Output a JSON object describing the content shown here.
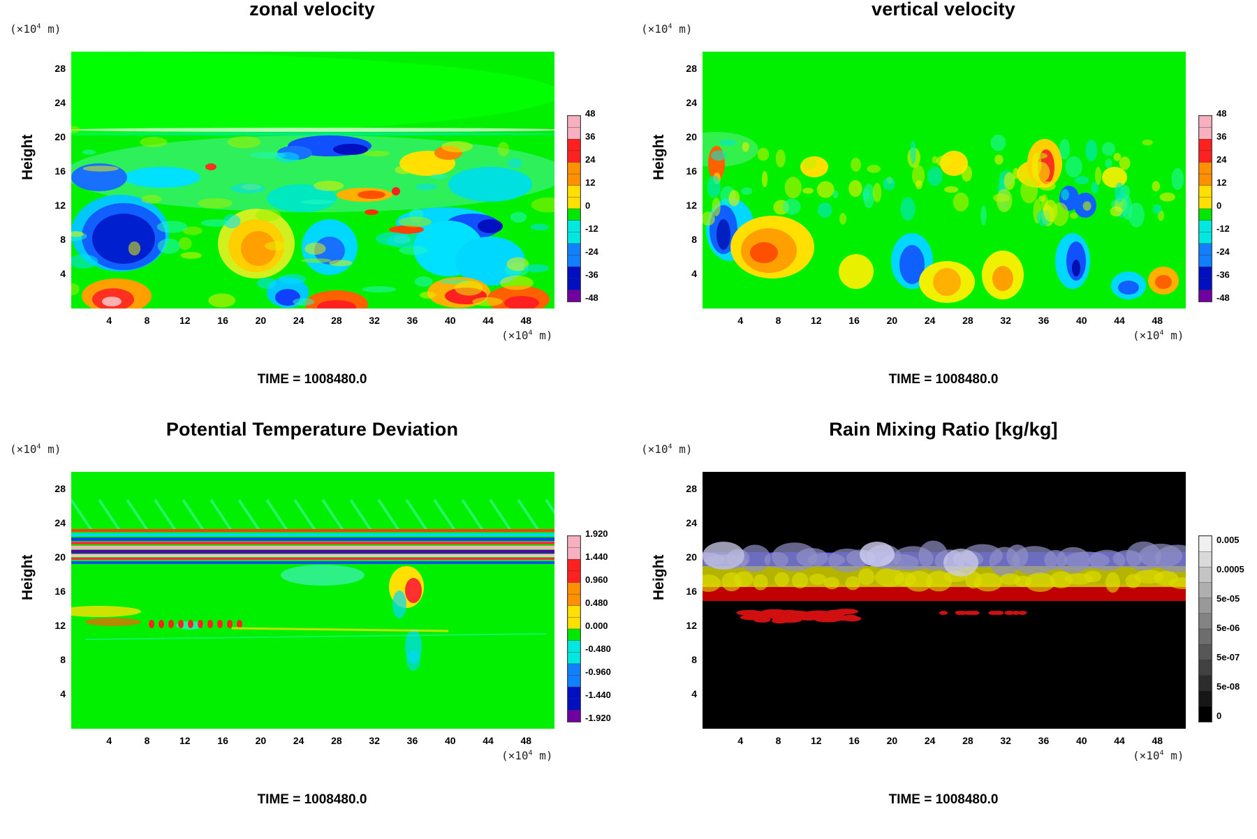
{
  "figure": {
    "time_label": "TIME = 1008480.0",
    "axis_scale_label": "(×10",
    "axis_scale_exp": "4",
    "axis_scale_unit": " m)",
    "y_axis_title": "Height"
  },
  "chart_data": [
    {
      "type": "heatmap",
      "title": "zonal velocity",
      "xlabel": "(×10^4 m)",
      "ylabel": "Height",
      "x_ticks": [
        "4",
        "8",
        "12",
        "16",
        "20",
        "24",
        "28",
        "32",
        "36",
        "40",
        "44",
        "48"
      ],
      "y_ticks": [
        "4",
        "8",
        "12",
        "16",
        "20",
        "24",
        "28"
      ],
      "xlim": [
        0,
        51
      ],
      "ylim": [
        0,
        30
      ],
      "colorbar_labels": [
        "48",
        "36",
        "24",
        "12",
        "0",
        "-12",
        "-24",
        "-36",
        "-48"
      ],
      "colormap": "rainbow",
      "colors": [
        "#f6b0c0",
        "#ff2020",
        "#ff9000",
        "#ffe000",
        "#00e800",
        "#00e8e0",
        "#1080ff",
        "#0010c0",
        "#7000a0"
      ]
    },
    {
      "type": "heatmap",
      "title": "vertical velocity",
      "xlabel": "(×10^4 m)",
      "ylabel": "Height",
      "x_ticks": [
        "4",
        "8",
        "12",
        "16",
        "20",
        "24",
        "28",
        "32",
        "36",
        "40",
        "44",
        "48"
      ],
      "y_ticks": [
        "4",
        "8",
        "12",
        "16",
        "20",
        "24",
        "28"
      ],
      "xlim": [
        0,
        51
      ],
      "ylim": [
        0,
        30
      ],
      "colorbar_labels": [
        "48",
        "36",
        "24",
        "12",
        "0",
        "-12",
        "-24",
        "-36",
        "-48"
      ],
      "colormap": "rainbow",
      "colors": [
        "#f6b0c0",
        "#ff2020",
        "#ff9000",
        "#ffe000",
        "#00e800",
        "#00e8e0",
        "#1080ff",
        "#0010c0",
        "#7000a0"
      ]
    },
    {
      "type": "heatmap",
      "title": "Potential Temperature Deviation",
      "xlabel": "(×10^4 m)",
      "ylabel": "Height",
      "x_ticks": [
        "4",
        "8",
        "12",
        "16",
        "20",
        "24",
        "28",
        "32",
        "36",
        "40",
        "44",
        "48"
      ],
      "y_ticks": [
        "4",
        "8",
        "12",
        "16",
        "20",
        "24",
        "28"
      ],
      "xlim": [
        0,
        51
      ],
      "ylim": [
        0,
        30
      ],
      "colorbar_labels": [
        "1.920",
        "1.440",
        "0.960",
        "0.480",
        "0.000",
        "-0.480",
        "-0.960",
        "-1.440",
        "-1.920"
      ],
      "colormap": "rainbow",
      "colors": [
        "#f6b0c0",
        "#ff2020",
        "#ff9000",
        "#ffe000",
        "#00e800",
        "#00e8e0",
        "#1080ff",
        "#0010c0",
        "#7000a0"
      ]
    },
    {
      "type": "heatmap",
      "title": "Rain Mixing Ratio [kg/kg]",
      "xlabel": "(×10^4 m)",
      "ylabel": "Height",
      "x_ticks": [
        "4",
        "8",
        "12",
        "16",
        "20",
        "24",
        "28",
        "32",
        "36",
        "40",
        "44",
        "48"
      ],
      "y_ticks": [
        "4",
        "8",
        "12",
        "16",
        "20",
        "24",
        "28"
      ],
      "xlim": [
        0,
        51
      ],
      "ylim": [
        0,
        30
      ],
      "colorbar_labels": [
        "0.005",
        "0.0005",
        "5e-05",
        "5e-06",
        "5e-07",
        "5e-08",
        "0"
      ],
      "colormap": "grayscale",
      "colors": [
        "#f0f0f0",
        "#000000"
      ]
    }
  ]
}
